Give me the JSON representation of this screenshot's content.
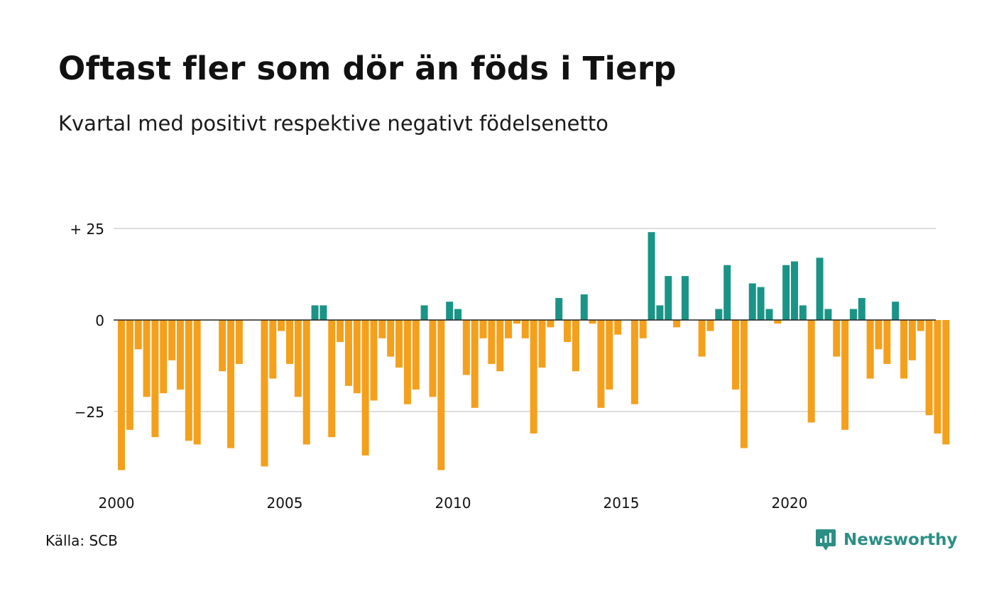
{
  "header": {
    "title": "Oftast fler som dör än föds i Tierp",
    "subtitle": "Kvartal med positivt respektive negativt födelsenetto"
  },
  "footer": {
    "source": "Källa: SCB",
    "brand": "Newsworthy",
    "brand_icon": "bar-chart-speech-bubble-icon"
  },
  "colors": {
    "positive": "#1a9486",
    "negative": "#f4a01c",
    "grid": "#dddddd",
    "zero_line": "#222222",
    "brand": "#2b8f84"
  },
  "chart_data": {
    "type": "bar",
    "title": "Oftast fler som dör än föds i Tierp",
    "subtitle": "Kvartal med positivt respektive negativt födelsenetto",
    "xlabel": "",
    "ylabel": "",
    "ylim": [
      -45,
      26
    ],
    "yticks": [
      {
        "value": 25,
        "label": "+ 25"
      },
      {
        "value": 0,
        "label": "0"
      },
      {
        "value": -25,
        "label": "−25"
      }
    ],
    "xticks": [
      "2000",
      "2005",
      "2010",
      "2015",
      "2020"
    ],
    "grid": true,
    "legend": "none",
    "x": [
      "2000 K1",
      "2000 K2",
      "2000 K3",
      "2000 K4",
      "2001 K1",
      "2001 K2",
      "2001 K3",
      "2001 K4",
      "2002 K1",
      "2002 K2",
      "2002 K3",
      "2002 K4",
      "2003 K1",
      "2003 K2",
      "2003 K3",
      "2003 K4",
      "2004 K1",
      "2004 K2",
      "2004 K3",
      "2004 K4",
      "2005 K1",
      "2005 K2",
      "2005 K3",
      "2005 K4",
      "2006 K1",
      "2006 K2",
      "2006 K3",
      "2006 K4",
      "2007 K1",
      "2007 K2",
      "2007 K3",
      "2007 K4",
      "2008 K1",
      "2008 K2",
      "2008 K3",
      "2008 K4",
      "2009 K1",
      "2009 K2",
      "2009 K3",
      "2009 K4",
      "2010 K1",
      "2010 K2",
      "2010 K3",
      "2010 K4",
      "2011 K1",
      "2011 K2",
      "2011 K3",
      "2011 K4",
      "2012 K1",
      "2012 K2",
      "2012 K3",
      "2012 K4",
      "2013 K1",
      "2013 K2",
      "2013 K3",
      "2013 K4",
      "2014 K1",
      "2014 K2",
      "2014 K3",
      "2014 K4",
      "2015 K1",
      "2015 K2",
      "2015 K3",
      "2015 K4",
      "2016 K1",
      "2016 K2",
      "2016 K3",
      "2016 K4",
      "2017 K1",
      "2017 K2",
      "2017 K3",
      "2017 K4",
      "2018 K1",
      "2018 K2",
      "2018 K3",
      "2018 K4",
      "2019 K1",
      "2019 K2",
      "2019 K3",
      "2019 K4",
      "2020 K1",
      "2020 K2",
      "2020 K3",
      "2020 K4",
      "2021 K1",
      "2021 K2",
      "2021 K3",
      "2021 K4",
      "2022 K1",
      "2022 K2",
      "2022 K3",
      "2022 K4",
      "2023 K1",
      "2023 K2",
      "2023 K3",
      "2023 K4",
      "2024 K1",
      "2024 K2",
      "2024 K3",
      "2024 K4"
    ],
    "values": [
      -41,
      -30,
      -8,
      -21,
      -32,
      -20,
      -11,
      -19,
      -33,
      -34,
      0,
      0,
      -14,
      -35,
      -12,
      0,
      0,
      -40,
      -16,
      -3,
      -12,
      -21,
      -34,
      4,
      4,
      -32,
      -6,
      -18,
      -20,
      -37,
      -22,
      -5,
      -10,
      -13,
      -23,
      -19,
      4,
      -21,
      -41,
      5,
      3,
      -15,
      -24,
      -5,
      -12,
      -14,
      -5,
      -1,
      -5,
      -31,
      -13,
      -2,
      6,
      -6,
      -14,
      7,
      -1,
      -24,
      -19,
      -4,
      0,
      -23,
      -5,
      24,
      4,
      12,
      -2,
      12,
      0,
      -10,
      -3,
      3,
      15,
      -19,
      -35,
      10,
      9,
      3,
      -1,
      15,
      16,
      4,
      -28,
      17,
      3,
      -10,
      -30,
      3,
      6,
      -16,
      -8,
      -12,
      5,
      -16,
      -11,
      -3,
      -26,
      -31,
      -34,
      0
    ]
  }
}
